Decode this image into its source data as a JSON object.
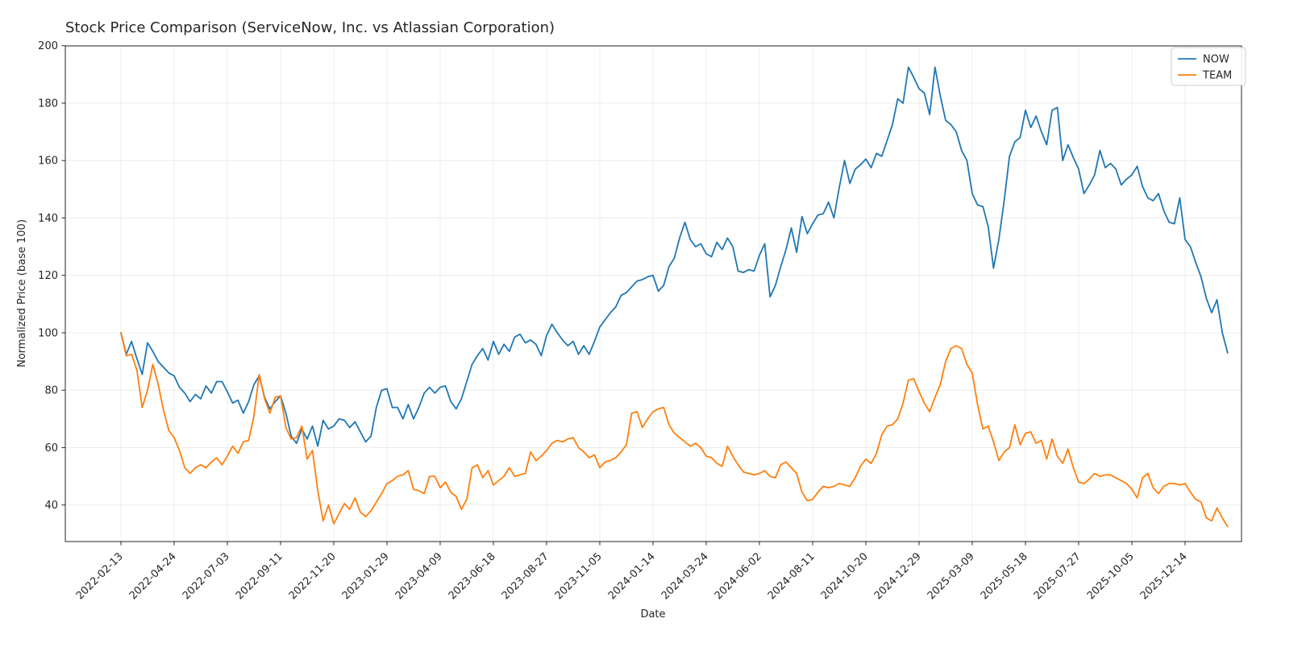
{
  "title": "Stock Price Comparison (ServiceNow, Inc. vs Atlassian Corporation)",
  "chart_data": {
    "type": "line",
    "title": "Stock Price Comparison (ServiceNow, Inc. vs Atlassian Corporation)",
    "xlabel": "Date",
    "ylabel": "Normalized Price (base 100)",
    "grid": true,
    "legend_position": "upper right",
    "ylim": [
      27,
      200
    ],
    "yticks": [
      40,
      60,
      80,
      100,
      120,
      140,
      160,
      180,
      200
    ],
    "x_start_date": "2022-02-13",
    "x_interval": "weekly",
    "xtick_labels": [
      "2022-02-13",
      "2022-04-24",
      "2022-07-03",
      "2022-09-11",
      "2022-11-20",
      "2023-01-29",
      "2023-04-09",
      "2023-06-18",
      "2023-08-27",
      "2023-11-05",
      "2024-01-14",
      "2024-03-24",
      "2024-06-02",
      "2024-08-11",
      "2024-10-20",
      "2024-12-29",
      "2025-03-09",
      "2025-05-18",
      "2025-07-27",
      "2025-10-05",
      "2025-12-14"
    ],
    "xtick_week_indices": [
      0,
      10,
      20,
      30,
      40,
      50,
      60,
      70,
      80,
      90,
      100,
      110,
      120,
      130,
      140,
      150,
      160,
      170,
      180,
      190,
      200
    ],
    "series": [
      {
        "name": "NOW",
        "color": "#1f77b4",
        "values": [
          100,
          92.5,
          97,
          91,
          85.5,
          96.5,
          93.5,
          90,
          88,
          86,
          85,
          81,
          79,
          76,
          78.5,
          77,
          81.5,
          79,
          83,
          83,
          79.5,
          75.5,
          76.5,
          72,
          76,
          82,
          85,
          77.5,
          73.5,
          76,
          78,
          72,
          64,
          61.5,
          66.5,
          63,
          67.5,
          60.5,
          69.5,
          66.5,
          67.5,
          70,
          69.5,
          67,
          69,
          65.5,
          62,
          64,
          74,
          80,
          80.5,
          74,
          74,
          70,
          75,
          70,
          74,
          79,
          81,
          79,
          81,
          81.5,
          76,
          73.5,
          77,
          83,
          89,
          92,
          94.5,
          90.5,
          97,
          92.5,
          96,
          93.5,
          98.5,
          99.5,
          96.5,
          97.5,
          96,
          92,
          99,
          103,
          100,
          97.5,
          95.5,
          97,
          92.5,
          95.5,
          92.5,
          97,
          102,
          104.5,
          107,
          109,
          113,
          114,
          116,
          118,
          118.5,
          119.5,
          120,
          114.5,
          116.5,
          123,
          126,
          133,
          138.5,
          132.5,
          130,
          131,
          127.5,
          126.5,
          131.5,
          129,
          133,
          130,
          121.5,
          121,
          122,
          121.5,
          127,
          131,
          112.5,
          116.5,
          123,
          129,
          136.5,
          128,
          140.5,
          134.5,
          138,
          141,
          141.5,
          145.5,
          140,
          150.5,
          160,
          152,
          157,
          158.5,
          160.5,
          157.5,
          162.5,
          161.5,
          167,
          172.5,
          181.5,
          180,
          192.5,
          189,
          185,
          183.5,
          176,
          192.5,
          182.5,
          174,
          172.5,
          170,
          163.5,
          160,
          148.5,
          144.5,
          144,
          137,
          122.5,
          132.5,
          146,
          161.5,
          166.5,
          168,
          177.5,
          171.5,
          175.5,
          170,
          165.5,
          177.5,
          178.5,
          160,
          165.5,
          161,
          157,
          148.5,
          151.5,
          155,
          163.5,
          157.5,
          159,
          157,
          151.5,
          153.5,
          155,
          158,
          151,
          147,
          146,
          148.5,
          142.5,
          138.5,
          138,
          147,
          132.5,
          130,
          124.5,
          119.5,
          112,
          107,
          111.5,
          100,
          93
        ]
      },
      {
        "name": "TEAM",
        "color": "#ff7f0e",
        "values": [
          100,
          92,
          92.5,
          87,
          74,
          80,
          89,
          82,
          73,
          66,
          63.5,
          59,
          53,
          51,
          53,
          54,
          53,
          55,
          56.5,
          54,
          57,
          60.5,
          58,
          62,
          62.5,
          71,
          85.5,
          77,
          72,
          77.5,
          78,
          67,
          63,
          63.5,
          67.5,
          56,
          59,
          45,
          34.5,
          40,
          33.5,
          37,
          40.5,
          38.5,
          42.5,
          37.5,
          36,
          38,
          41,
          44,
          47.5,
          48.5,
          50,
          50.5,
          52,
          45.5,
          45,
          44,
          50,
          50,
          46,
          48,
          44.5,
          43,
          38.5,
          42,
          53,
          54,
          49.5,
          52,
          47,
          48.5,
          50,
          53,
          50,
          50.5,
          51,
          58.5,
          55.5,
          57,
          59,
          61.5,
          62.5,
          62,
          63,
          63.5,
          60,
          58.5,
          56.5,
          57.5,
          53,
          55,
          55.5,
          56.5,
          58.5,
          61,
          72,
          72.5,
          67,
          70,
          72.5,
          73.5,
          74,
          68,
          65,
          63.5,
          62,
          60.5,
          61.5,
          60,
          57,
          56.5,
          54.5,
          53.5,
          60.5,
          57,
          54,
          51.5,
          51,
          50.5,
          51,
          52,
          50,
          49.5,
          54,
          55,
          53,
          51,
          44.5,
          41.5,
          42,
          44.5,
          46.5,
          46,
          46.5,
          47.5,
          47,
          46.5,
          49.5,
          53.5,
          56,
          54.5,
          58,
          64.5,
          67.5,
          68,
          70,
          75.5,
          83.5,
          84,
          79.5,
          75.5,
          72.5,
          77.5,
          82,
          90,
          94.5,
          95.5,
          94.5,
          89,
          86,
          75,
          66.5,
          67.5,
          62,
          55.5,
          58.5,
          60,
          68,
          61,
          65,
          65.5,
          61.5,
          62.5,
          56,
          63,
          57,
          54.5,
          59.5,
          53,
          48,
          47.5,
          49,
          51,
          50,
          50.5,
          50.5,
          49.5,
          48.5,
          47.5,
          45.5,
          42.5,
          49.5,
          51,
          46,
          44,
          46.5,
          47.5,
          47.5,
          47,
          47.5,
          44.5,
          42,
          41,
          35.5,
          34.5,
          39,
          35.5,
          32.5
        ]
      }
    ]
  },
  "legend": {
    "items": [
      "NOW",
      "TEAM"
    ]
  }
}
